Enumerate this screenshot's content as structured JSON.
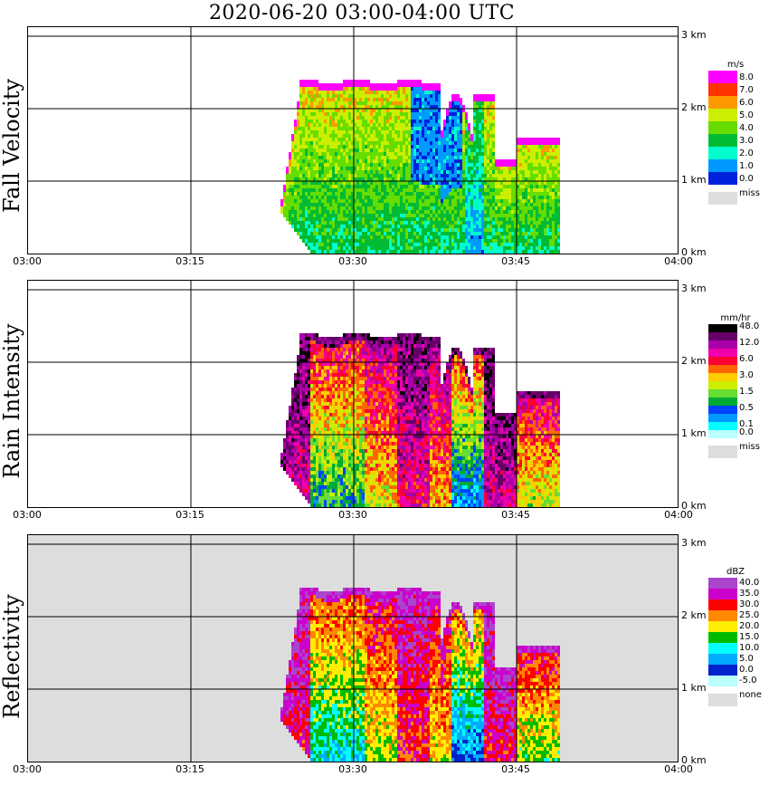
{
  "title": "2020-06-20   03:00-04:00 UTC",
  "x_ticks": [
    "03:00",
    "03:15",
    "03:30",
    "03:45",
    "04:00"
  ],
  "y_ticks": [
    "0 km",
    "1 km",
    "2 km",
    "3 km"
  ],
  "panels": [
    {
      "name": "Fall Velocity",
      "legend_unit": "m/s",
      "legend": [
        {
          "label": "8.0",
          "color": "#ff00ff"
        },
        {
          "label": "7.0",
          "color": "#ff3300"
        },
        {
          "label": "6.0",
          "color": "#ff9900"
        },
        {
          "label": "5.0",
          "color": "#ccee00"
        },
        {
          "label": "4.0",
          "color": "#66dd00"
        },
        {
          "label": "3.0",
          "color": "#00bb33"
        },
        {
          "label": "2.0",
          "color": "#00ffcc"
        },
        {
          "label": "1.0",
          "color": "#0099ff"
        },
        {
          "label": "0.0",
          "color": "#0022dd"
        }
      ],
      "missing_label": "miss"
    },
    {
      "name": "Rain Intensity",
      "legend_unit": "mm/hr",
      "legend": [
        {
          "label": "48.0",
          "color": "#000000"
        },
        {
          "label": "",
          "color": "#660066"
        },
        {
          "label": "12.0",
          "color": "#aa00aa"
        },
        {
          "label": "",
          "color": "#ee00aa"
        },
        {
          "label": "6.0",
          "color": "#ff0033"
        },
        {
          "label": "",
          "color": "#ff6600"
        },
        {
          "label": "3.0",
          "color": "#ffcc00"
        },
        {
          "label": "",
          "color": "#ccee00"
        },
        {
          "label": "1.5",
          "color": "#66dd33"
        },
        {
          "label": "",
          "color": "#00aa33"
        },
        {
          "label": "0.5",
          "color": "#0044ff"
        },
        {
          "label": "",
          "color": "#0099ff"
        },
        {
          "label": "0.1",
          "color": "#00ffff"
        },
        {
          "label": "0.0",
          "color": "#bbffff"
        }
      ],
      "missing_label": "miss"
    },
    {
      "name": "Reflectivity",
      "legend_unit": "dBZ",
      "legend": [
        {
          "label": "40.0",
          "color": "#aa44cc"
        },
        {
          "label": "35.0",
          "color": "#cc00cc"
        },
        {
          "label": "30.0",
          "color": "#ff0000"
        },
        {
          "label": "25.0",
          "color": "#ff8800"
        },
        {
          "label": "20.0",
          "color": "#ffee00"
        },
        {
          "label": "15.0",
          "color": "#00bb00"
        },
        {
          "label": "10.0",
          "color": "#00ffff"
        },
        {
          "label": "5.0",
          "color": "#00aaff"
        },
        {
          "label": "0.0",
          "color": "#0022cc"
        },
        {
          "label": "-5.0",
          "color": "#bbffff"
        }
      ],
      "missing_label": "none"
    }
  ],
  "chart_data": {
    "type": "heatmap",
    "title": "2020-06-20   03:00-04:00 UTC",
    "xlabel": "",
    "ylabel": "",
    "xlim": [
      "03:00",
      "04:00"
    ],
    "ylim_km": [
      0,
      3.2
    ],
    "grid": true,
    "series": [
      {
        "name": "Fall Velocity",
        "unit": "m/s",
        "echo_start": "03:23",
        "echo_end": "03:50",
        "echo_top_km": 2.4
      },
      {
        "name": "Rain Intensity",
        "unit": "mm/hr",
        "echo_start": "03:23",
        "echo_end": "03:50",
        "echo_top_km": 2.4
      },
      {
        "name": "Reflectivity",
        "unit": "dBZ",
        "echo_start": "03:23",
        "echo_end": "03:50",
        "echo_top_km": 2.4
      }
    ]
  }
}
